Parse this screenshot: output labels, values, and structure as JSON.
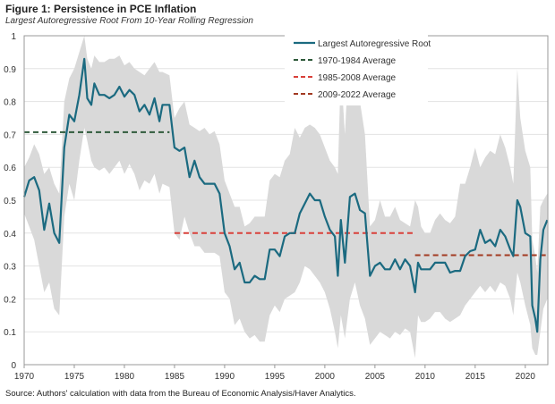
{
  "title": "Figure 1: Persistence in PCE Inflation",
  "subtitle": "Largest Autoregressive Root From 10-Year Rolling Regression",
  "source": "Source: Authors' calculation with data from the Bureau of Economic Analysis/Haver Analytics.",
  "chart_data": {
    "type": "line",
    "xlim": [
      1970,
      2022.25
    ],
    "ylim": [
      0,
      1
    ],
    "x_ticks": [
      "1970",
      "1975",
      "1980",
      "1985",
      "1990",
      "1995",
      "2000",
      "2005",
      "2010",
      "2015",
      "2020"
    ],
    "y_ticks": [
      "0",
      "0.1",
      "0.2",
      "0.3",
      "0.4",
      "0.5",
      "0.6",
      "0.7",
      "0.8",
      "0.9",
      "1"
    ],
    "grid": "horizontal",
    "legend_position": "top-center",
    "colors": {
      "series": "#1b6a80",
      "band": "#d9d9d9",
      "avg1": "#2f5a3a",
      "avg2": "#d9413a",
      "avg3": "#a23a22"
    },
    "series": [
      {
        "name": "Largest Autoregressive Root",
        "x": [
          1970.0,
          1970.5,
          1971.0,
          1971.5,
          1972.0,
          1972.5,
          1973.0,
          1973.5,
          1974.0,
          1974.5,
          1975.0,
          1975.5,
          1976.0,
          1976.3,
          1976.7,
          1977.0,
          1977.5,
          1978.0,
          1978.5,
          1979.0,
          1979.5,
          1980.0,
          1980.5,
          1981.0,
          1981.5,
          1982.0,
          1982.5,
          1983.0,
          1983.5,
          1983.8,
          1984.5,
          1985.0,
          1985.5,
          1986.0,
          1986.5,
          1987.0,
          1987.5,
          1988.0,
          1988.5,
          1989.0,
          1989.5,
          1990.0,
          1990.5,
          1991.0,
          1991.5,
          1992.0,
          1992.5,
          1993.0,
          1993.5,
          1994.0,
          1994.5,
          1995.0,
          1995.5,
          1996.0,
          1996.5,
          1997.0,
          1997.5,
          1998.0,
          1998.5,
          1999.0,
          1999.5,
          2000.0,
          2000.5,
          2001.0,
          2001.3,
          2001.6,
          2002.0,
          2002.5,
          2003.0,
          2003.5,
          2004.0,
          2004.5,
          2005.0,
          2005.5,
          2006.0,
          2006.5,
          2007.0,
          2007.5,
          2008.0,
          2008.5,
          2009.0,
          2009.3,
          2009.6,
          2010.0,
          2010.5,
          2011.0,
          2011.5,
          2012.0,
          2012.5,
          2013.0,
          2013.5,
          2014.0,
          2014.5,
          2015.0,
          2015.5,
          2016.0,
          2016.5,
          2017.0,
          2017.5,
          2018.0,
          2018.5,
          2018.8,
          2019.2,
          2019.5,
          2020.0,
          2020.5,
          2020.7,
          2021.0,
          2021.2,
          2021.5,
          2021.8,
          2022.2
        ],
        "y": [
          0.51,
          0.56,
          0.57,
          0.53,
          0.41,
          0.49,
          0.4,
          0.37,
          0.66,
          0.76,
          0.74,
          0.82,
          0.93,
          0.81,
          0.79,
          0.855,
          0.82,
          0.82,
          0.81,
          0.82,
          0.845,
          0.815,
          0.835,
          0.82,
          0.77,
          0.79,
          0.76,
          0.81,
          0.74,
          0.79,
          0.79,
          0.66,
          0.65,
          0.66,
          0.57,
          0.62,
          0.57,
          0.55,
          0.55,
          0.55,
          0.52,
          0.4,
          0.36,
          0.29,
          0.31,
          0.25,
          0.25,
          0.27,
          0.26,
          0.26,
          0.35,
          0.35,
          0.33,
          0.39,
          0.4,
          0.4,
          0.46,
          0.49,
          0.52,
          0.5,
          0.5,
          0.45,
          0.41,
          0.39,
          0.27,
          0.44,
          0.31,
          0.51,
          0.52,
          0.47,
          0.46,
          0.27,
          0.3,
          0.31,
          0.29,
          0.29,
          0.32,
          0.29,
          0.32,
          0.3,
          0.22,
          0.31,
          0.29,
          0.29,
          0.29,
          0.31,
          0.31,
          0.31,
          0.28,
          0.285,
          0.285,
          0.33,
          0.345,
          0.35,
          0.41,
          0.37,
          0.38,
          0.36,
          0.41,
          0.39,
          0.35,
          0.33,
          0.5,
          0.48,
          0.4,
          0.39,
          0.18,
          0.14,
          0.1,
          0.32,
          0.41,
          0.44
        ],
        "lower": [
          0.46,
          0.42,
          0.38,
          0.3,
          0.22,
          0.25,
          0.17,
          0.15,
          0.45,
          0.55,
          0.5,
          0.62,
          0.72,
          0.68,
          0.62,
          0.6,
          0.59,
          0.6,
          0.58,
          0.6,
          0.62,
          0.58,
          0.61,
          0.58,
          0.53,
          0.56,
          0.55,
          0.58,
          0.52,
          0.55,
          0.54,
          0.4,
          0.38,
          0.45,
          0.4,
          0.36,
          0.36,
          0.34,
          0.34,
          0.34,
          0.33,
          0.22,
          0.2,
          0.12,
          0.14,
          0.1,
          0.08,
          0.09,
          0.07,
          0.07,
          0.15,
          0.18,
          0.16,
          0.2,
          0.21,
          0.22,
          0.25,
          0.3,
          0.29,
          0.27,
          0.25,
          0.22,
          0.17,
          0.1,
          0.05,
          0.15,
          0.08,
          0.2,
          0.25,
          0.18,
          0.14,
          0.06,
          0.08,
          0.1,
          0.09,
          0.08,
          0.1,
          0.09,
          0.11,
          0.1,
          0.02,
          0.15,
          0.13,
          0.13,
          0.14,
          0.16,
          0.16,
          0.14,
          0.13,
          0.14,
          0.15,
          0.18,
          0.2,
          0.22,
          0.24,
          0.22,
          0.24,
          0.22,
          0.25,
          0.24,
          0.2,
          0.15,
          0.28,
          0.25,
          0.18,
          0.12,
          0.05,
          0.03,
          0.03,
          0.1,
          0.17,
          0.2
        ],
        "upper": [
          0.6,
          0.63,
          0.67,
          0.64,
          0.58,
          0.6,
          0.55,
          0.52,
          0.8,
          0.87,
          0.9,
          0.95,
          1.0,
          0.93,
          0.9,
          0.94,
          0.92,
          0.92,
          0.93,
          0.93,
          0.94,
          0.91,
          0.92,
          0.9,
          0.89,
          0.88,
          0.9,
          0.92,
          0.89,
          0.89,
          0.88,
          0.75,
          0.78,
          0.8,
          0.73,
          0.72,
          0.71,
          0.72,
          0.7,
          0.71,
          0.67,
          0.56,
          0.52,
          0.48,
          0.48,
          0.42,
          0.43,
          0.45,
          0.45,
          0.45,
          0.56,
          0.58,
          0.57,
          0.62,
          0.64,
          0.72,
          0.69,
          0.72,
          0.73,
          0.72,
          0.7,
          0.66,
          0.62,
          0.6,
          0.58,
          0.9,
          0.7,
          1.0,
          0.95,
          0.8,
          0.7,
          0.42,
          0.44,
          0.5,
          0.45,
          0.45,
          0.48,
          0.44,
          0.43,
          0.42,
          0.5,
          0.48,
          0.42,
          0.4,
          0.4,
          0.44,
          0.46,
          0.44,
          0.43,
          0.45,
          0.55,
          0.55,
          0.6,
          0.66,
          0.6,
          0.63,
          0.65,
          0.64,
          0.7,
          0.66,
          0.6,
          0.55,
          0.9,
          0.75,
          0.65,
          0.6,
          0.38,
          0.33,
          0.28,
          0.48,
          0.5,
          0.52
        ]
      }
    ],
    "averages": [
      {
        "name": "1970-1984 Average",
        "x": [
          1970,
          1984.5
        ],
        "value": 0.707
      },
      {
        "name": "1985-2008 Average",
        "x": [
          1985,
          2008.8
        ],
        "value": 0.4
      },
      {
        "name": "2009-2022 Average",
        "x": [
          2009,
          2022.25
        ],
        "value": 0.333
      }
    ]
  }
}
